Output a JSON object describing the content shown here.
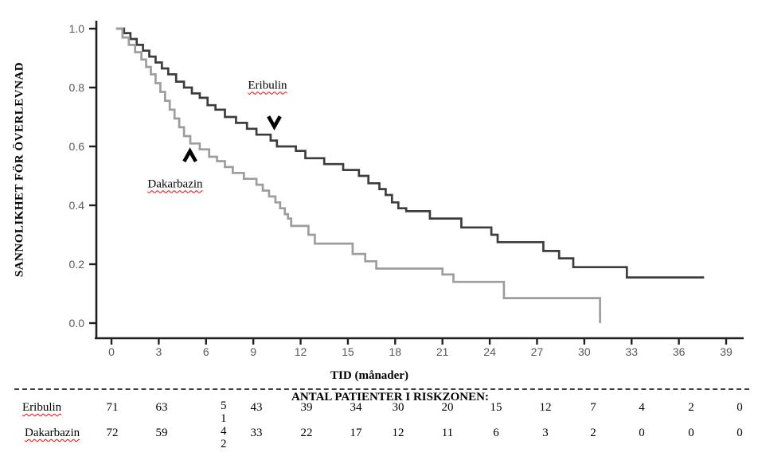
{
  "figure": {
    "background": "#ffffff"
  },
  "chart_data": {
    "type": "line",
    "subtype": "kaplan-meier-step-curves",
    "title": "",
    "xlabel": "TID (månader)",
    "ylabel": "SANNOLIKHET FÖR ÖVERLEVNAD",
    "xlim": [
      0,
      39
    ],
    "ylim": [
      0.0,
      1.0
    ],
    "x_ticks": [
      0,
      3,
      6,
      9,
      12,
      15,
      18,
      21,
      24,
      27,
      30,
      33,
      36,
      39
    ],
    "y_ticks": [
      1.0,
      0.8,
      0.6,
      0.4,
      0.2,
      0.0
    ],
    "grid": false,
    "legend": "inline-labels",
    "axis_color": "#1f1f1f",
    "tick_label_color": "#595959",
    "series": [
      {
        "name": "Eribulin",
        "color": "#3d3d3d",
        "end_x": 37.6,
        "steps": [
          [
            0.3,
            1.0
          ],
          [
            0.8,
            0.985
          ],
          [
            1.2,
            0.965
          ],
          [
            1.6,
            0.945
          ],
          [
            2.0,
            0.925
          ],
          [
            2.4,
            0.905
          ],
          [
            2.8,
            0.885
          ],
          [
            3.2,
            0.865
          ],
          [
            3.6,
            0.845
          ],
          [
            4.1,
            0.82
          ],
          [
            4.6,
            0.8
          ],
          [
            5.1,
            0.78
          ],
          [
            5.6,
            0.765
          ],
          [
            6.1,
            0.74
          ],
          [
            6.6,
            0.725
          ],
          [
            7.2,
            0.7
          ],
          [
            7.9,
            0.68
          ],
          [
            8.6,
            0.66
          ],
          [
            9.2,
            0.64
          ],
          [
            10.1,
            0.62
          ],
          [
            10.5,
            0.6
          ],
          [
            11.7,
            0.585
          ],
          [
            12.3,
            0.56
          ],
          [
            13.5,
            0.54
          ],
          [
            14.7,
            0.52
          ],
          [
            15.7,
            0.5
          ],
          [
            16.3,
            0.475
          ],
          [
            17.0,
            0.455
          ],
          [
            17.4,
            0.435
          ],
          [
            17.8,
            0.41
          ],
          [
            18.2,
            0.39
          ],
          [
            18.7,
            0.38
          ],
          [
            20.2,
            0.355
          ],
          [
            22.2,
            0.325
          ],
          [
            24.1,
            0.3
          ],
          [
            24.5,
            0.275
          ],
          [
            27.4,
            0.245
          ],
          [
            28.4,
            0.22
          ],
          [
            29.3,
            0.19
          ],
          [
            32.7,
            0.155
          ]
        ]
      },
      {
        "name": "Dakarbazin",
        "color": "#9d9d9d",
        "end_x": 31.0,
        "steps": [
          [
            0.3,
            1.0
          ],
          [
            0.7,
            0.97
          ],
          [
            1.1,
            0.945
          ],
          [
            1.5,
            0.92
          ],
          [
            1.9,
            0.895
          ],
          [
            2.2,
            0.87
          ],
          [
            2.5,
            0.845
          ],
          [
            2.8,
            0.815
          ],
          [
            3.1,
            0.785
          ],
          [
            3.4,
            0.755
          ],
          [
            3.7,
            0.725
          ],
          [
            4.0,
            0.695
          ],
          [
            4.3,
            0.665
          ],
          [
            4.6,
            0.635
          ],
          [
            5.0,
            0.61
          ],
          [
            5.6,
            0.59
          ],
          [
            6.2,
            0.565
          ],
          [
            6.7,
            0.55
          ],
          [
            7.2,
            0.53
          ],
          [
            7.7,
            0.51
          ],
          [
            8.4,
            0.49
          ],
          [
            9.2,
            0.47
          ],
          [
            9.6,
            0.45
          ],
          [
            10.0,
            0.43
          ],
          [
            10.4,
            0.41
          ],
          [
            10.7,
            0.39
          ],
          [
            11.0,
            0.37
          ],
          [
            11.2,
            0.355
          ],
          [
            11.4,
            0.33
          ],
          [
            12.5,
            0.3
          ],
          [
            12.9,
            0.27
          ],
          [
            15.3,
            0.235
          ],
          [
            16.1,
            0.21
          ],
          [
            16.8,
            0.185
          ],
          [
            21.0,
            0.165
          ],
          [
            21.7,
            0.14
          ],
          [
            24.9,
            0.085
          ],
          [
            31.0,
            0.0
          ]
        ]
      }
    ],
    "annotations": [
      {
        "kind": "series-label",
        "text": "Eribulin",
        "x": 9.9,
        "y": 0.805,
        "underline": "red-wavy"
      },
      {
        "kind": "chevron-down",
        "x": 10.33,
        "y": 0.667
      },
      {
        "kind": "series-label",
        "text": "Dakarbazin",
        "x": 4.04,
        "y": 0.47,
        "underline": "red-wavy"
      },
      {
        "kind": "chevron-up",
        "x": 4.98,
        "y": 0.584
      }
    ]
  },
  "risk_table": {
    "header": "ANTAL PATIENTER I RISKZONEN:",
    "rows": [
      {
        "label": "Eribulin",
        "values": [
          "71",
          "63",
          "51",
          "43",
          "39",
          "34",
          "30",
          "20",
          "15",
          "12",
          "7",
          "4",
          "2",
          "0"
        ]
      },
      {
        "label": "Dakarbazin",
        "values": [
          "72",
          "59",
          "42",
          "33",
          "22",
          "17",
          "12",
          "11",
          "6",
          "3",
          "2",
          "0",
          "0",
          "0"
        ]
      }
    ]
  }
}
